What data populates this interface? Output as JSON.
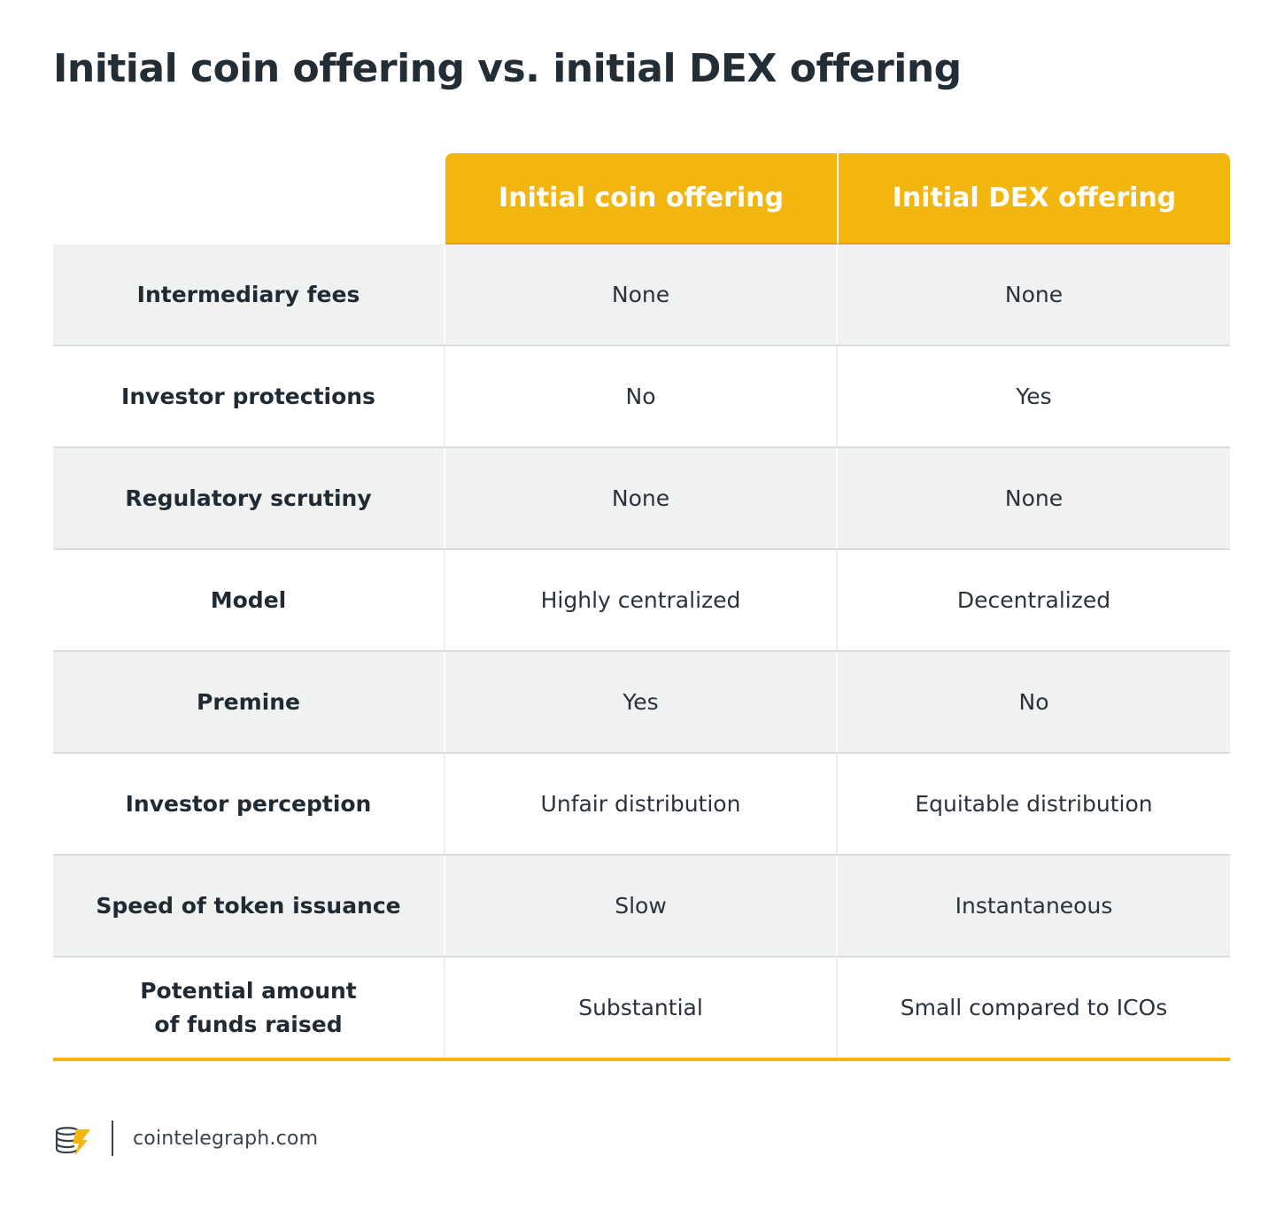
{
  "title": "Initial coin offering vs. initial DEX offering",
  "table": {
    "columns": [
      "Initial coin offering",
      "Initial DEX offering"
    ],
    "rows": [
      {
        "label": "Intermediary fees",
        "ico": "None",
        "ido": "None"
      },
      {
        "label": "Investor protections",
        "ico": "No",
        "ido": "Yes"
      },
      {
        "label": "Regulatory scrutiny",
        "ico": "None",
        "ido": "None"
      },
      {
        "label": "Model",
        "ico": "Highly centralized",
        "ido": "Decentralized"
      },
      {
        "label": "Premine",
        "ico": "Yes",
        "ido": "No"
      },
      {
        "label": "Investor perception",
        "ico": "Unfair distribution",
        "ido": "Equitable distribution"
      },
      {
        "label": "Speed of token issuance",
        "ico": "Slow",
        "ido": "Instantaneous"
      },
      {
        "label": "Potential amount of funds raised",
        "ico": "Substantial",
        "ido": "Small compared to ICOs"
      }
    ]
  },
  "footer": {
    "logo_icon": "cointelegraph-logo-icon",
    "site": "cointelegraph.com"
  },
  "colors": {
    "accent": "#f2b60f",
    "shaded_row": "#f0f1f1",
    "text": "#1f2a33"
  }
}
